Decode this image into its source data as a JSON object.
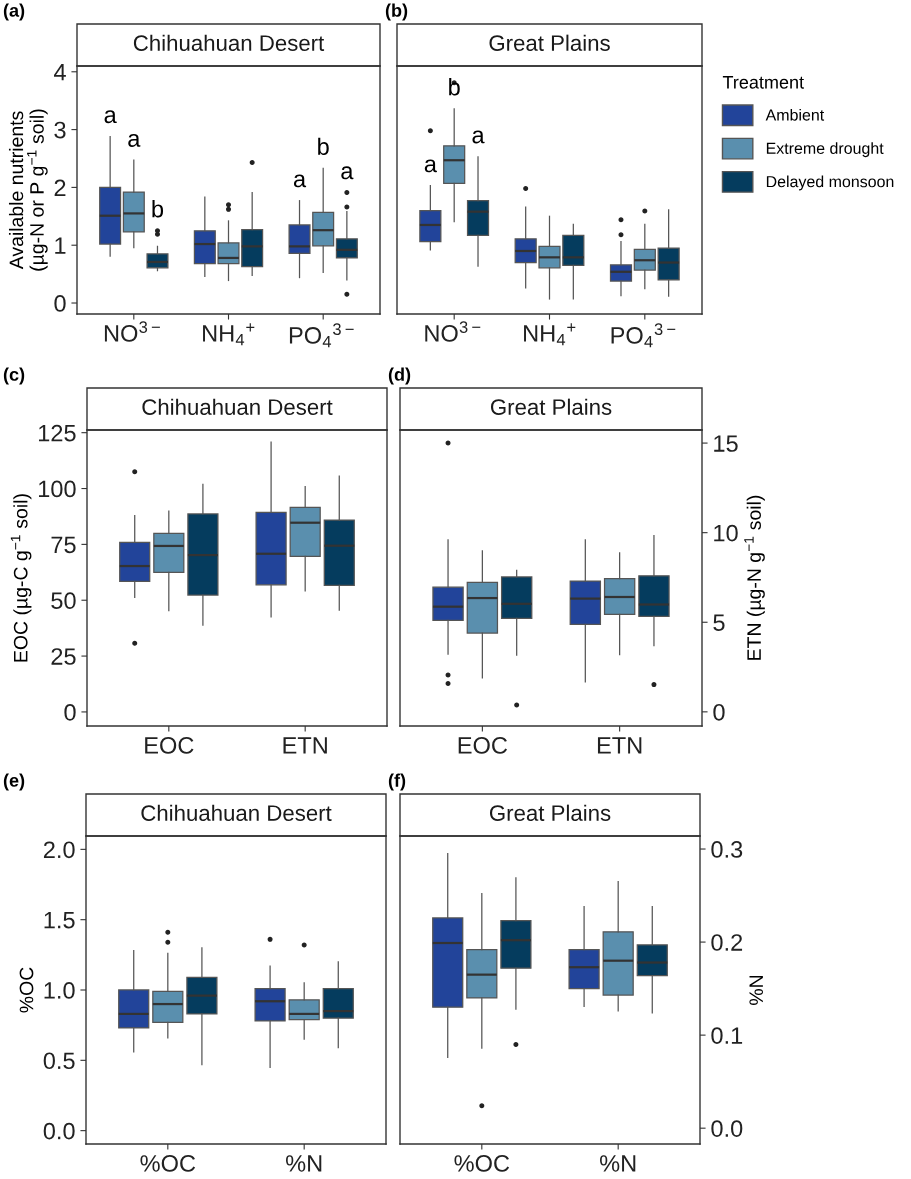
{
  "chart_data": [
    {
      "type": "box",
      "title": "(a)",
      "subtitle": "Chihuahuan Desert",
      "categories": [
        "NO$^{3−}$",
        "NH$_{4}$$^{+}$",
        "PO$_{4}$$^{3−}$"
      ],
      "ylabel": "Available nutrients\n(µg-N or P g$^{−1}$ soil)",
      "ylim": [
        -0.19,
        4.1
      ],
      "yticks": [
        0,
        1,
        2,
        3,
        4
      ],
      "series": [
        {
          "color": "#22449a",
          "value_labels": [
            "a",
            null,
            "a"
          ],
          "boxes": [
            {
              "low": 0.81,
              "q1": 1.02,
              "median": 1.51,
              "q3": 2.0,
              "high": 2.88
            },
            {
              "low": 0.46,
              "q1": 0.68,
              "median": 1.02,
              "q3": 1.25,
              "high": 1.83
            },
            {
              "low": 0.44,
              "q1": 0.86,
              "median": 0.98,
              "q3": 1.35,
              "high": 1.77
            }
          ]
        },
        {
          "color": "#5a8fae",
          "value_labels": [
            "a",
            null,
            "b"
          ],
          "boxes": [
            {
              "low": 0.96,
              "q1": 1.23,
              "median": 1.55,
              "q3": 1.92,
              "high": 2.47
            },
            {
              "low": 0.39,
              "q1": 0.68,
              "median": 0.78,
              "q3": 1.04,
              "high": 1.42,
              "outliers": [
                1.62,
                1.7
              ]
            },
            {
              "low": 0.53,
              "q1": 0.99,
              "median": 1.26,
              "q3": 1.57,
              "high": 2.33
            }
          ]
        },
        {
          "color": "#053c5e",
          "value_labels": [
            "b",
            null,
            "a"
          ],
          "boxes": [
            {
              "low": 0.56,
              "q1": 0.61,
              "median": 0.71,
              "q3": 0.85,
              "high": 0.98,
              "outliers": [
                1.19,
                1.25
              ]
            },
            {
              "low": 0.48,
              "q1": 0.63,
              "median": 0.98,
              "q3": 1.27,
              "high": 1.91,
              "outliers": [
                2.43
              ]
            },
            {
              "low": 0.4,
              "q1": 0.78,
              "median": 0.92,
              "q3": 1.11,
              "high": 1.58,
              "outliers": [
                0.15,
                1.66,
                1.91
              ]
            }
          ]
        }
      ]
    },
    {
      "type": "box",
      "title": "(b)",
      "subtitle": "Great Plains",
      "categories": [
        "NO$^{3−}$",
        "NH$_{4}$$^{+}$",
        "PO$_{4}$$^{3−}$"
      ],
      "ylim": [
        -0.19,
        4.1
      ],
      "tick_labels": "x",
      "legend": "right",
      "legend_title": "Treatment",
      "series": [
        {
          "name": "Ambient",
          "color": "#22449a",
          "value_labels": [
            "a",
            null,
            null
          ],
          "boxes": [
            {
              "low": 0.92,
              "q1": 1.06,
              "median": 1.35,
              "q3": 1.6,
              "high": 2.03,
              "outliers": [
                2.98
              ]
            },
            {
              "low": 0.26,
              "q1": 0.7,
              "median": 0.9,
              "q3": 1.11,
              "high": 1.66,
              "outliers": [
                1.98
              ]
            },
            {
              "low": 0.13,
              "q1": 0.38,
              "median": 0.54,
              "q3": 0.66,
              "high": 1.06,
              "outliers": [
                1.18,
                1.44
              ]
            }
          ]
        },
        {
          "name": "Extreme drought",
          "color": "#5a8fae",
          "value_labels": [
            "b",
            null,
            null
          ],
          "boxes": [
            {
              "low": 1.41,
              "q1": 2.07,
              "median": 2.47,
              "q3": 2.72,
              "high": 3.36,
              "outliers": [
                3.81
              ]
            },
            {
              "low": 0.07,
              "q1": 0.61,
              "median": 0.79,
              "q3": 0.98,
              "high": 1.5
            },
            {
              "low": 0.25,
              "q1": 0.57,
              "median": 0.74,
              "q3": 0.93,
              "high": 1.36,
              "outliers": [
                1.59
              ]
            }
          ]
        },
        {
          "name": "Delayed monsoon",
          "color": "#053c5e",
          "value_labels": [
            "a",
            null,
            null
          ],
          "boxes": [
            {
              "low": 0.64,
              "q1": 1.17,
              "median": 1.58,
              "q3": 1.77,
              "high": 2.53
            },
            {
              "low": 0.07,
              "q1": 0.65,
              "median": 0.79,
              "q3": 1.17,
              "high": 1.36
            },
            {
              "low": 0.12,
              "q1": 0.4,
              "median": 0.7,
              "q3": 0.95,
              "high": 1.61
            }
          ]
        }
      ]
    },
    {
      "type": "box",
      "title": "(c)",
      "subtitle": "Chihuahuan Desert",
      "categories": [
        "EOC",
        "ETN"
      ],
      "ylabel": "EOC (µg-C g$^{−1}$ soil)",
      "ylim": [
        -6.3,
        126.2
      ],
      "yticks": [
        0,
        25,
        50,
        75,
        100,
        125
      ],
      "series": [
        {
          "color": "#22449a",
          "boxes": [
            {
              "low": 51.3,
              "q1": 58.4,
              "median": 65.3,
              "q3": 75.9,
              "high": 87.9,
              "outliers": [
                30.7,
                107.5
              ]
            },
            {
              "low": 42.5,
              "q1": 56.9,
              "median": 70.8,
              "q3": 89.3,
              "high": 120.8
            }
          ]
        },
        {
          "color": "#5a8fae",
          "boxes": [
            {
              "low": 45.3,
              "q1": 62.5,
              "median": 74.3,
              "q3": 79.9,
              "high": 89.9
            },
            {
              "low": 54.2,
              "q1": 69.6,
              "median": 84.7,
              "q3": 91.6,
              "high": 100.8
            }
          ]
        },
        {
          "color": "#053c5e",
          "boxes": [
            {
              "low": 38.9,
              "q1": 52.3,
              "median": 70.2,
              "q3": 88.6,
              "high": 101.9
            },
            {
              "low": 45.6,
              "q1": 56.6,
              "median": 74.4,
              "q3": 85.9,
              "high": 105.6
            }
          ]
        }
      ]
    },
    {
      "type": "box",
      "title": "(d)",
      "subtitle": "Great Plains",
      "categories": [
        "EOC",
        "ETN"
      ],
      "y2label": "ETN (µg-N g$^{−1}$ soil)",
      "y2lim": [
        -0.79,
        15.73
      ],
      "y2ticks": [
        0,
        5,
        10,
        15
      ],
      "series": [
        {
          "color": "#22449a",
          "axis": "y2",
          "boxes": [
            {
              "low": 3.22,
              "q1": 5.1,
              "median": 5.87,
              "q3": 6.96,
              "high": 9.6,
              "outliers": [
                1.58,
                2.06,
                15.0
              ]
            },
            {
              "low": 1.67,
              "q1": 4.88,
              "median": 6.32,
              "q3": 7.3,
              "high": 9.6
            }
          ]
        },
        {
          "color": "#5a8fae",
          "axis": "y2",
          "boxes": [
            {
              "low": 1.9,
              "q1": 4.4,
              "median": 6.35,
              "q3": 7.22,
              "high": 8.98
            },
            {
              "low": 3.2,
              "q1": 5.44,
              "median": 6.41,
              "q3": 7.44,
              "high": 8.87
            }
          ]
        },
        {
          "color": "#053c5e",
          "axis": "y2",
          "boxes": [
            {
              "low": 3.16,
              "q1": 5.21,
              "median": 6.03,
              "q3": 7.53,
              "high": 7.9,
              "outliers": [
                0.38
              ]
            },
            {
              "low": 3.69,
              "q1": 5.33,
              "median": 5.99,
              "q3": 7.59,
              "high": 9.84,
              "outliers": [
                1.52
              ]
            }
          ]
        }
      ]
    },
    {
      "type": "box",
      "title": "(e)",
      "subtitle": "Chihuahuan Desert",
      "categories": [
        "%OC",
        "%N"
      ],
      "ylabel": "%OC",
      "ylim": [
        -0.095,
        2.095
      ],
      "yticks": [
        {
          "value": 0,
          "label": "0.0"
        },
        0.5,
        {
          "value": 1,
          "label": "1.0"
        },
        1.5,
        {
          "value": 2,
          "label": "2.0"
        }
      ],
      "series": [
        {
          "color": "#22449a",
          "boxes": [
            {
              "low": 0.56,
              "q1": 0.73,
              "median": 0.83,
              "q3": 1.0,
              "high": 1.28
            },
            {
              "low": 0.45,
              "q1": 0.78,
              "median": 0.92,
              "q3": 1.01,
              "high": 1.17,
              "outliers": [
                1.36
              ]
            }
          ]
        },
        {
          "color": "#5a8fae",
          "boxes": [
            {
              "low": 0.66,
              "q1": 0.77,
              "median": 0.9,
              "q3": 0.99,
              "high": 1.26,
              "outliers": [
                1.34,
                1.41
              ]
            },
            {
              "low": 0.65,
              "q1": 0.79,
              "median": 0.83,
              "q3": 0.93,
              "high": 1.05,
              "outliers": [
                1.32
              ]
            }
          ]
        },
        {
          "color": "#053c5e",
          "boxes": [
            {
              "low": 0.47,
              "q1": 0.83,
              "median": 0.96,
              "q3": 1.09,
              "high": 1.3
            },
            {
              "low": 0.59,
              "q1": 0.8,
              "median": 0.85,
              "q3": 1.01,
              "high": 1.2
            }
          ]
        }
      ]
    },
    {
      "type": "box",
      "title": "(f)",
      "subtitle": "Great Plains",
      "categories": [
        "%OC",
        "%N"
      ],
      "y2label": "%N",
      "y2lim": [
        -0.017,
        0.314
      ],
      "y2ticks": [
        {
          "value": 0,
          "label": "0.0"
        },
        0.1,
        0.2,
        0.3
      ],
      "series": [
        {
          "color": "#22449a",
          "axis": "y2",
          "boxes": [
            {
              "low": 0.076,
              "q1": 0.13,
              "median": 0.199,
              "q3": 0.226,
              "high": 0.295
            },
            {
              "low": 0.131,
              "q1": 0.15,
              "median": 0.173,
              "q3": 0.192,
              "high": 0.238
            }
          ]
        },
        {
          "color": "#5a8fae",
          "axis": "y2",
          "boxes": [
            {
              "low": 0.086,
              "q1": 0.14,
              "median": 0.165,
              "q3": 0.192,
              "high": 0.252,
              "outliers": [
                0.024
              ]
            },
            {
              "low": 0.126,
              "q1": 0.143,
              "median": 0.18,
              "q3": 0.211,
              "high": 0.265
            }
          ]
        },
        {
          "color": "#053c5e",
          "axis": "y2",
          "boxes": [
            {
              "low": 0.128,
              "q1": 0.172,
              "median": 0.202,
              "q3": 0.223,
              "high": 0.269,
              "outliers": [
                0.09
              ]
            },
            {
              "low": 0.124,
              "q1": 0.164,
              "median": 0.178,
              "q3": 0.197,
              "high": 0.238
            }
          ]
        }
      ]
    }
  ]
}
